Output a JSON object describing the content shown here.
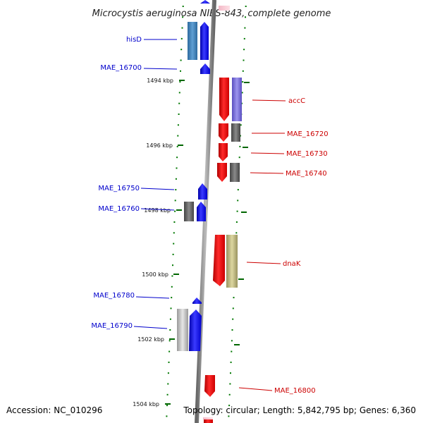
{
  "title": "Microcystis aeruginosa NIES-843, complete genome",
  "accession": "Accession: NC_010296",
  "summary": "Topology: circular; Length: 5,842,795 bp; Genes: 6,360",
  "colors": {
    "forward_gene": "#0000ff",
    "reverse_gene": "#ff0000",
    "forward_label": "#0000cc",
    "reverse_label": "#cc0000",
    "tick": "#006600",
    "axis": "#888888"
  },
  "axis_ticks": [
    {
      "label": "1494 kbp"
    },
    {
      "label": "1496 kbp"
    },
    {
      "label": "1498 kbp"
    },
    {
      "label": "1500 kbp"
    },
    {
      "label": "1502 kbp"
    },
    {
      "label": "1504 kbp"
    }
  ],
  "genes": [
    {
      "label": "hisD",
      "strand": "+"
    },
    {
      "label": "MAE_16700",
      "strand": "+"
    },
    {
      "label": "accC",
      "strand": "-"
    },
    {
      "label": "MAE_16720",
      "strand": "-"
    },
    {
      "label": "MAE_16730",
      "strand": "-"
    },
    {
      "label": "MAE_16740",
      "strand": "-"
    },
    {
      "label": "MAE_16750",
      "strand": "+"
    },
    {
      "label": "MAE_16760",
      "strand": "+"
    },
    {
      "label": "dnaK",
      "strand": "-"
    },
    {
      "label": "MAE_16780",
      "strand": "+"
    },
    {
      "label": "MAE_16790",
      "strand": "+"
    },
    {
      "label": "MAE_16800",
      "strand": "-"
    }
  ]
}
